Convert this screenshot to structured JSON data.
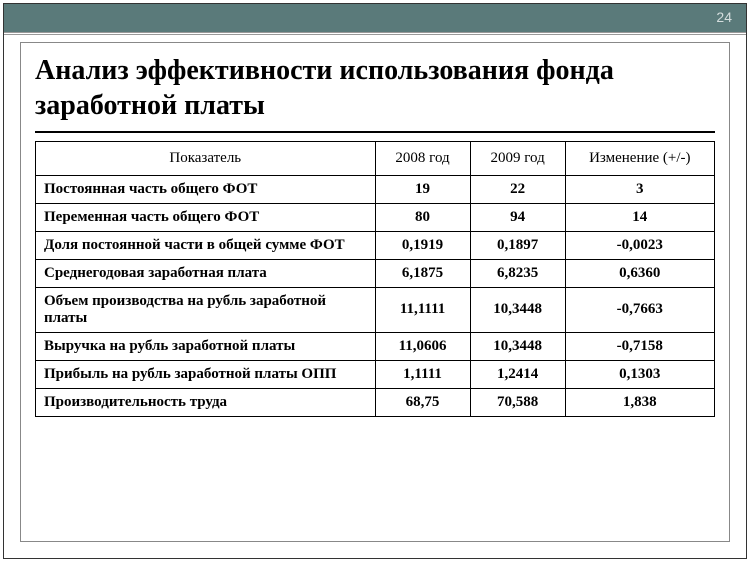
{
  "page_number": "24",
  "title": "Анализ эффективности использования фонда заработной платы",
  "colors": {
    "topbar_bg": "#5a7a7a",
    "page_number_color": "#d5dede",
    "border_color": "#000000",
    "text_color": "#000000"
  },
  "table": {
    "columns": [
      "Показатель",
      "2008 год",
      "2009 год",
      "Изменение (+/-)"
    ],
    "rows": [
      {
        "label": "Постоянная часть общего ФОТ",
        "y2008": "19",
        "y2009": "22",
        "change": "3"
      },
      {
        "label": "Переменная часть общего ФОТ",
        "y2008": "80",
        "y2009": "94",
        "change": "14"
      },
      {
        "label": "Доля постоянной части в общей сумме ФОТ",
        "y2008": "0,1919",
        "y2009": "0,1897",
        "change": "-0,0023"
      },
      {
        "label": "Среднегодовая заработная плата",
        "y2008": "6,1875",
        "y2009": "6,8235",
        "change": "0,6360"
      },
      {
        "label": "Объем производства на рубль заработной платы",
        "y2008": "11,1111",
        "y2009": "10,3448",
        "change": "-0,7663"
      },
      {
        "label": "Выручка на рубль заработной платы",
        "y2008": "11,0606",
        "y2009": "10,3448",
        "change": "-0,7158"
      },
      {
        "label": "Прибыль на рубль заработной платы ОПП",
        "y2008": "1,1111",
        "y2009": "1,2414",
        "change": "0,1303"
      },
      {
        "label": "Производительность труда",
        "y2008": "68,75",
        "y2009": "70,588",
        "change": "1,838"
      }
    ]
  }
}
